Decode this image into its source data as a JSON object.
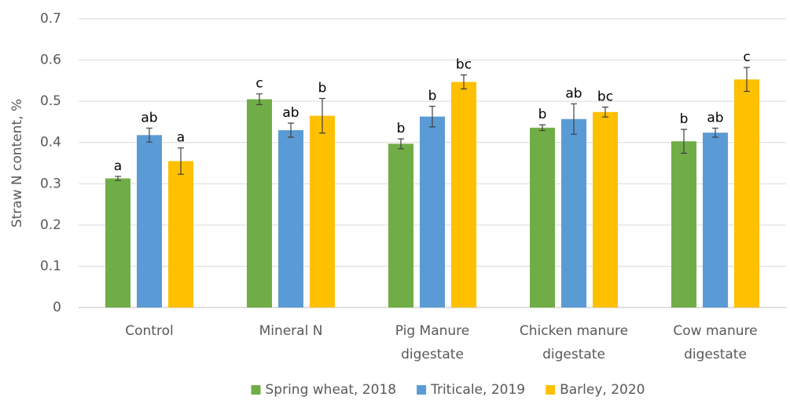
{
  "chart_data": {
    "type": "bar",
    "y_label": "Straw N content, %",
    "categories": [
      [
        "Control"
      ],
      [
        "Mineral N"
      ],
      [
        "Pig Manure",
        "digestate"
      ],
      [
        "Chicken manure",
        "digestate"
      ],
      [
        "Cow manure",
        "digestate"
      ]
    ],
    "series": [
      {
        "name": "Spring wheat, 2018",
        "color": "#70ad47",
        "values": [
          0.313,
          0.505,
          0.397,
          0.436,
          0.403
        ],
        "errors": [
          0.005,
          0.013,
          0.012,
          0.007,
          0.029
        ],
        "letters": [
          "a",
          "c",
          "b",
          "b",
          "b"
        ]
      },
      {
        "name": "Triticale, 2019",
        "color": "#5b9bd5",
        "values": [
          0.418,
          0.43,
          0.463,
          0.457,
          0.424
        ],
        "errors": [
          0.017,
          0.017,
          0.025,
          0.037,
          0.011
        ],
        "letters": [
          "ab",
          "ab",
          "b",
          "ab",
          "ab"
        ]
      },
      {
        "name": "Barley, 2020",
        "color": "#ffc000",
        "values": [
          0.355,
          0.465,
          0.547,
          0.474,
          0.553
        ],
        "errors": [
          0.032,
          0.042,
          0.017,
          0.012,
          0.029
        ],
        "letters": [
          "a",
          "b",
          "bc",
          "bc",
          "c"
        ]
      }
    ],
    "ylim": [
      0,
      0.7
    ],
    "yticks": [
      0,
      0.1,
      0.2,
      0.3,
      0.4,
      0.5,
      0.6,
      0.7
    ],
    "grid": true,
    "legend": "bottom"
  }
}
